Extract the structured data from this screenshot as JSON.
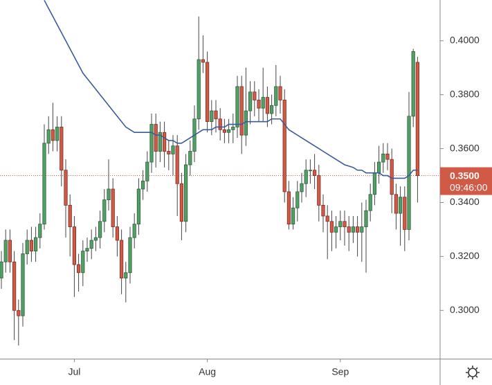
{
  "chart_data": {
    "type": "candlestick",
    "categories": [
      null,
      null,
      null,
      null,
      null,
      null,
      null,
      null,
      null,
      null,
      null,
      null,
      null,
      null,
      null,
      null,
      null,
      "Jul",
      null,
      null,
      null,
      null,
      null,
      null,
      null,
      null,
      null,
      null,
      null,
      null,
      null,
      null,
      null,
      null,
      null,
      null,
      null,
      null,
      null,
      null,
      null,
      null,
      null,
      null,
      null,
      null,
      null,
      null,
      "Aug",
      null,
      null,
      null,
      null,
      null,
      null,
      null,
      null,
      null,
      null,
      null,
      null,
      null,
      null,
      null,
      null,
      null,
      null,
      null,
      null,
      null,
      null,
      null,
      null,
      null,
      null,
      null,
      null,
      null,
      null,
      "Sep",
      null,
      null,
      null,
      null,
      null,
      null,
      null,
      null,
      null,
      null,
      null,
      null,
      null,
      null,
      null,
      null,
      null,
      null
    ],
    "open": [
      0.312,
      0.318,
      0.326,
      0.318,
      0.3,
      0.298,
      0.321,
      0.326,
      0.322,
      0.327,
      0.332,
      0.362,
      0.367,
      0.363,
      0.368,
      0.352,
      0.339,
      0.331,
      0.317,
      0.314,
      0.322,
      0.323,
      0.326,
      0.327,
      0.333,
      0.341,
      0.345,
      0.331,
      0.326,
      0.312,
      0.314,
      0.327,
      0.332,
      0.345,
      0.348,
      0.355,
      0.369,
      0.359,
      0.366,
      0.359,
      0.358,
      0.361,
      0.347,
      0.333,
      0.354,
      0.359,
      0.371,
      0.393,
      0.392,
      0.37,
      0.374,
      0.371,
      0.367,
      0.366,
      0.367,
      0.368,
      0.383,
      0.365,
      0.374,
      0.381,
      0.378,
      0.375,
      0.379,
      0.373,
      0.376,
      0.383,
      0.378,
      0.344,
      0.332,
      0.338,
      0.344,
      0.347,
      0.352,
      0.352,
      0.35,
      0.339,
      0.335,
      0.333,
      0.329,
      0.331,
      0.333,
      0.331,
      0.329,
      0.331,
      0.329,
      0.331,
      0.337,
      0.343,
      0.351,
      0.355,
      0.358,
      0.356,
      0.343,
      0.336,
      0.342,
      0.33,
      0.372,
      0.392
    ],
    "high": [
      0.322,
      0.33,
      0.33,
      0.322,
      0.304,
      0.325,
      0.33,
      0.331,
      0.331,
      0.336,
      0.369,
      0.372,
      0.377,
      0.372,
      0.372,
      0.356,
      0.343,
      0.335,
      0.321,
      0.326,
      0.327,
      0.33,
      0.331,
      0.337,
      0.345,
      0.356,
      0.349,
      0.335,
      0.33,
      0.318,
      0.331,
      0.336,
      0.349,
      0.352,
      0.359,
      0.373,
      0.373,
      0.37,
      0.37,
      0.363,
      0.365,
      0.365,
      0.351,
      0.358,
      0.363,
      0.376,
      0.409,
      0.402,
      0.396,
      0.378,
      0.378,
      0.375,
      0.371,
      0.371,
      0.373,
      0.387,
      0.387,
      0.39,
      0.385,
      0.385,
      0.382,
      0.39,
      0.383,
      0.38,
      0.391,
      0.387,
      0.382,
      0.348,
      0.342,
      0.348,
      0.351,
      0.356,
      0.356,
      0.358,
      0.354,
      0.343,
      0.339,
      0.337,
      0.335,
      0.337,
      0.337,
      0.335,
      0.335,
      0.335,
      0.34,
      0.341,
      0.347,
      0.355,
      0.361,
      0.362,
      0.362,
      0.36,
      0.347,
      0.346,
      0.346,
      0.381,
      0.397,
      0.394
    ],
    "low": [
      0.308,
      0.314,
      0.314,
      0.289,
      0.287,
      0.294,
      0.317,
      0.318,
      0.318,
      0.323,
      0.33,
      0.358,
      0.359,
      0.359,
      0.346,
      0.327,
      0.32,
      0.305,
      0.307,
      0.309,
      0.318,
      0.319,
      0.322,
      0.323,
      0.329,
      0.337,
      0.327,
      0.32,
      0.306,
      0.303,
      0.31,
      0.323,
      0.328,
      0.341,
      0.344,
      0.351,
      0.353,
      0.355,
      0.353,
      0.352,
      0.35,
      0.335,
      0.326,
      0.329,
      0.35,
      0.355,
      0.367,
      0.388,
      0.366,
      0.365,
      0.366,
      0.363,
      0.362,
      0.362,
      0.362,
      0.364,
      0.358,
      0.361,
      0.369,
      0.372,
      0.37,
      0.37,
      0.368,
      0.369,
      0.372,
      0.373,
      0.34,
      0.33,
      0.33,
      0.333,
      0.34,
      0.342,
      0.347,
      0.345,
      0.333,
      0.329,
      0.319,
      0.322,
      0.323,
      0.326,
      0.324,
      0.322,
      0.325,
      0.32,
      0.318,
      0.314,
      0.333,
      0.339,
      0.347,
      0.351,
      0.352,
      0.336,
      0.33,
      0.324,
      0.322,
      0.326,
      0.368,
      0.34
    ],
    "close": [
      0.318,
      0.326,
      0.318,
      0.3,
      0.298,
      0.321,
      0.326,
      0.322,
      0.327,
      0.332,
      0.362,
      0.367,
      0.363,
      0.368,
      0.352,
      0.339,
      0.331,
      0.317,
      0.314,
      0.322,
      0.323,
      0.326,
      0.327,
      0.333,
      0.341,
      0.345,
      0.331,
      0.326,
      0.312,
      0.314,
      0.327,
      0.332,
      0.345,
      0.348,
      0.355,
      0.369,
      0.359,
      0.366,
      0.359,
      0.358,
      0.361,
      0.347,
      0.333,
      0.354,
      0.359,
      0.371,
      0.393,
      0.392,
      0.37,
      0.374,
      0.371,
      0.367,
      0.366,
      0.367,
      0.368,
      0.383,
      0.365,
      0.374,
      0.381,
      0.378,
      0.375,
      0.379,
      0.373,
      0.376,
      0.383,
      0.378,
      0.344,
      0.332,
      0.338,
      0.344,
      0.347,
      0.352,
      0.352,
      0.35,
      0.339,
      0.335,
      0.333,
      0.329,
      0.331,
      0.333,
      0.331,
      0.329,
      0.331,
      0.329,
      0.331,
      0.337,
      0.343,
      0.351,
      0.355,
      0.358,
      0.356,
      0.343,
      0.336,
      0.342,
      0.33,
      0.372,
      0.396,
      0.35
    ],
    "up_color": "#52a065",
    "down_color": "#d05a46",
    "series": [
      {
        "color": "#3b5a9d",
        "values": [
          null,
          null,
          null,
          null,
          null,
          null,
          null,
          null,
          null,
          null,
          0.415,
          0.412,
          0.409,
          0.406,
          0.403,
          0.4,
          0.397,
          0.394,
          0.391,
          0.388,
          0.386,
          0.384,
          0.382,
          0.38,
          0.378,
          0.376,
          0.374,
          0.372,
          0.37,
          0.368,
          0.367,
          0.366,
          0.366,
          0.366,
          0.366,
          0.366,
          0.365,
          0.365,
          0.364,
          0.363,
          0.363,
          0.362,
          0.362,
          0.363,
          0.364,
          0.365,
          0.366,
          0.367,
          0.367,
          0.367,
          0.368,
          0.368,
          0.368,
          0.369,
          0.369,
          0.369,
          0.369,
          0.37,
          0.37,
          0.37,
          0.37,
          0.37,
          0.37,
          0.371,
          0.371,
          0.371,
          0.369,
          0.367,
          0.366,
          0.365,
          0.364,
          0.363,
          0.362,
          0.361,
          0.36,
          0.359,
          0.358,
          0.357,
          0.356,
          0.355,
          0.354,
          0.3535,
          0.353,
          0.352,
          0.352,
          0.351,
          0.351,
          0.351,
          0.351,
          0.35,
          0.35,
          0.349,
          0.349,
          0.349,
          0.349,
          0.35,
          0.352,
          0.352
        ]
      }
    ],
    "ylim": [
      0.2821,
      0.4151
    ],
    "yticks": [
      {
        "value": 0.3,
        "label": "0.3000"
      },
      {
        "value": 0.32,
        "label": "0.3200"
      },
      {
        "value": 0.34,
        "label": "0.3400"
      },
      {
        "value": 0.36,
        "label": "0.3600"
      },
      {
        "value": 0.38,
        "label": "0.3800"
      },
      {
        "value": 0.4,
        "label": "0.4000"
      }
    ],
    "last_price": {
      "value": 0.35,
      "label": "0.3500",
      "color": "#d05a46"
    },
    "countdown": "09:46:00"
  }
}
